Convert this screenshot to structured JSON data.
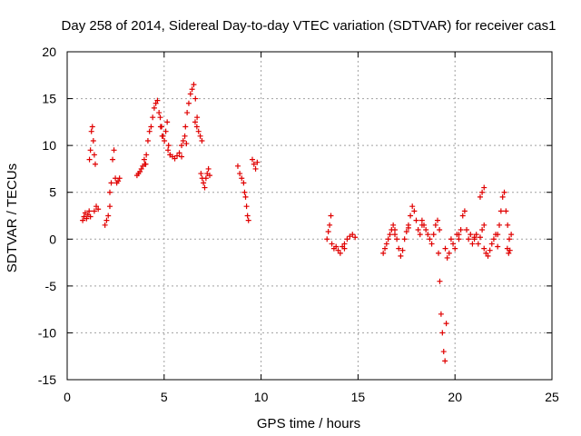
{
  "chart_data": {
    "type": "scatter",
    "title": "Day 258 of 2014, Sidereal Day-to-day VTEC variation (SDTVAR) for receiver cas1",
    "xlabel": "GPS time / hours",
    "ylabel": "SDTVAR / TECUs",
    "xlim": [
      0,
      25
    ],
    "ylim": [
      -15,
      20
    ],
    "xticks": [
      0,
      5,
      10,
      15,
      20,
      25
    ],
    "yticks": [
      -15,
      -10,
      -5,
      0,
      5,
      10,
      15,
      20
    ],
    "xtick_labels": [
      "0",
      "5",
      "10",
      "15",
      "20",
      "25"
    ],
    "ytick_labels": [
      "-15",
      "-10",
      "-5",
      "0",
      "5",
      "10",
      "15",
      "20"
    ],
    "grid": true,
    "marker": "+",
    "color": "#e00000",
    "segments": [
      {
        "x0": 0.8,
        "x1": 1.2,
        "y": [
          2.0,
          2.4,
          2.8,
          2.2,
          2.6,
          3.0,
          2.4
        ]
      },
      {
        "x0": 1.15,
        "x1": 1.45,
        "y": [
          8.5,
          9.5,
          11.5,
          12.0,
          10.5,
          9.0,
          8.0
        ]
      },
      {
        "x0": 1.4,
        "x1": 1.6,
        "y": [
          3.0,
          3.5,
          3.2
        ]
      },
      {
        "x0": 1.95,
        "x1": 2.2,
        "y": [
          1.5,
          2.0,
          2.5,
          3.5
        ]
      },
      {
        "x0": 2.2,
        "x1": 2.7,
        "y": [
          5.0,
          6.0,
          8.5,
          9.5,
          6.5,
          6.0,
          6.2,
          6.5
        ]
      },
      {
        "x0": 3.6,
        "x1": 4.05,
        "y": [
          6.8,
          7.0,
          7.2,
          7.5,
          7.8,
          8.5,
          8.0
        ]
      },
      {
        "x0": 4.0,
        "x1": 4.9,
        "y": [
          8.0,
          9.0,
          10.5,
          11.5,
          12.0,
          13.0,
          14.0,
          14.5,
          14.8,
          13.5,
          12.0,
          11.0
        ]
      },
      {
        "x0": 4.8,
        "x1": 5.3,
        "y": [
          13.0,
          12.0,
          11.0,
          10.5,
          11.5,
          12.5,
          10.0,
          9.0
        ]
      },
      {
        "x0": 5.2,
        "x1": 5.9,
        "y": [
          9.5,
          9.0,
          8.8,
          8.6,
          8.9,
          9.2,
          8.8
        ]
      },
      {
        "x0": 5.9,
        "x1": 6.15,
        "y": [
          10.0,
          10.5,
          11.0,
          10.2
        ]
      },
      {
        "x0": 6.1,
        "x1": 6.7,
        "y": [
          12.0,
          13.5,
          14.5,
          15.5,
          16.0,
          16.5,
          15.0,
          13.0
        ]
      },
      {
        "x0": 6.6,
        "x1": 6.95,
        "y": [
          12.5,
          12.0,
          11.5,
          11.0,
          10.5
        ]
      },
      {
        "x0": 6.9,
        "x1": 7.35,
        "y": [
          7.0,
          6.5,
          6.0,
          5.5,
          6.5,
          7.0,
          7.5,
          6.8
        ]
      },
      {
        "x0": 8.8,
        "x1": 9.0,
        "y": [
          7.8,
          7.0,
          6.5
        ]
      },
      {
        "x0": 9.1,
        "x1": 9.35,
        "y": [
          6.0,
          5.0,
          4.5,
          3.5,
          2.5,
          2.0
        ]
      },
      {
        "x0": 9.55,
        "x1": 9.8,
        "y": [
          8.5,
          8.0,
          7.5,
          8.2
        ]
      },
      {
        "x0": 13.4,
        "x1": 13.6,
        "y": [
          0.0,
          0.8,
          1.5,
          2.5
        ]
      },
      {
        "x0": 13.65,
        "x1": 14.3,
        "y": [
          -0.5,
          -1.0,
          -0.8,
          -1.2,
          -1.5,
          -0.8,
          -1.0
        ]
      },
      {
        "x0": 14.3,
        "x1": 14.85,
        "y": [
          -0.5,
          0.0,
          0.3,
          0.5,
          0.2
        ]
      },
      {
        "x0": 16.3,
        "x1": 16.9,
        "y": [
          -1.5,
          -1.0,
          -0.5,
          0.0,
          0.5,
          1.0,
          1.5,
          1.0
        ]
      },
      {
        "x0": 16.9,
        "x1": 17.6,
        "y": [
          0.5,
          0.0,
          -1.0,
          -1.8,
          -1.2,
          0.0,
          0.8,
          1.2
        ]
      },
      {
        "x0": 17.6,
        "x1": 18.3,
        "y": [
          1.5,
          2.5,
          3.5,
          3.0,
          2.0,
          1.0,
          0.5,
          1.5
        ]
      },
      {
        "x0": 18.3,
        "x1": 19.2,
        "y": [
          2.0,
          1.5,
          1.0,
          0.5,
          0.0,
          -0.5,
          0.5,
          1.5,
          2.0,
          1.0
        ]
      },
      {
        "x0": 19.15,
        "x1": 19.55,
        "y": [
          -1.5,
          -4.5,
          -8.0,
          -10.0,
          -12.0,
          -13.0,
          -9.0
        ]
      },
      {
        "x0": 19.5,
        "x1": 20.2,
        "y": [
          -1.0,
          -2.0,
          -1.5,
          0.0,
          -0.5,
          -1.0,
          0.5,
          0.0
        ]
      },
      {
        "x0": 20.2,
        "x1": 21.0,
        "y": [
          0.5,
          1.0,
          2.5,
          3.0,
          1.0,
          0.0,
          0.5,
          -0.5,
          0.2
        ]
      },
      {
        "x0": 21.0,
        "x1": 21.5,
        "y": [
          0.0,
          0.5,
          -0.5,
          0.2,
          1.0,
          1.5
        ]
      },
      {
        "x0": 21.3,
        "x1": 21.5,
        "y": [
          4.5,
          5.0,
          5.5
        ]
      },
      {
        "x0": 21.5,
        "x1": 22.2,
        "y": [
          -1.0,
          -1.5,
          -1.8,
          -1.2,
          -0.5,
          0.0,
          0.5,
          -0.8
        ]
      },
      {
        "x0": 22.2,
        "x1": 22.8,
        "y": [
          0.5,
          1.5,
          3.0,
          4.5,
          5.0,
          3.0,
          1.5,
          0.0
        ]
      },
      {
        "x0": 22.7,
        "x1": 22.9,
        "y": [
          -1.0,
          -1.5,
          -1.2,
          0.5
        ]
      }
    ]
  }
}
